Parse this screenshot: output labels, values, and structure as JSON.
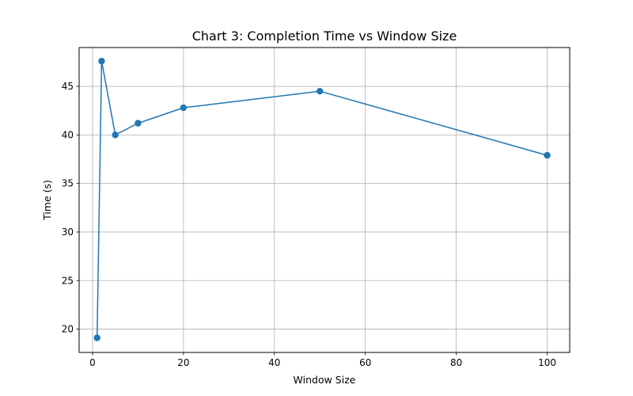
{
  "chart_data": {
    "type": "line",
    "title": "Chart 3: Completion Time vs Window Size",
    "xlabel": "Window Size",
    "ylabel": "Time (s)",
    "xlim": [
      -2.95,
      104.95
    ],
    "ylim": [
      17.6,
      49.0
    ],
    "xticks": [
      0,
      20,
      40,
      60,
      80,
      100
    ],
    "yticks": [
      20,
      25,
      30,
      35,
      40,
      45
    ],
    "grid": true,
    "series": [
      {
        "color": "#1f77b4",
        "marker": "circle",
        "points": [
          {
            "x": 1,
            "y": 19.1
          },
          {
            "x": 2,
            "y": 47.6
          },
          {
            "x": 5,
            "y": 40.0
          },
          {
            "x": 10,
            "y": 41.2
          },
          {
            "x": 20,
            "y": 42.8
          },
          {
            "x": 50,
            "y": 44.5
          },
          {
            "x": 100,
            "y": 37.9
          }
        ]
      }
    ]
  }
}
